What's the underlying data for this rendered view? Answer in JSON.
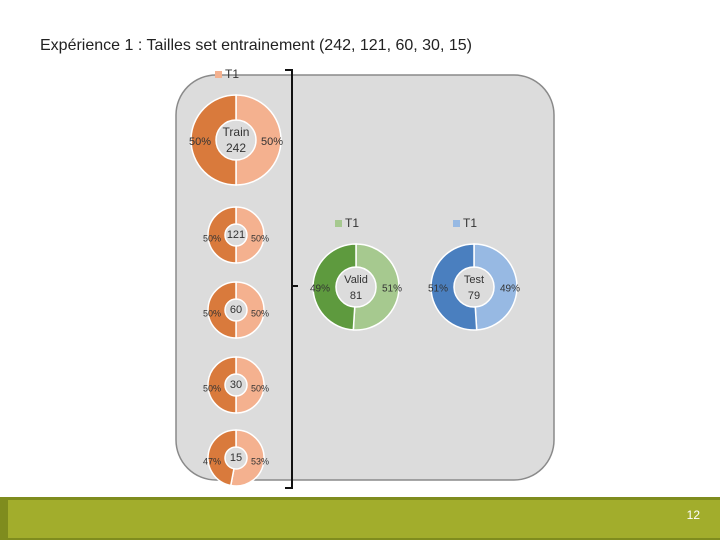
{
  "title": "Expérience 1 : Tailles set entrainement (242, 121, 60, 30, 15)",
  "page_number": 12,
  "chart_data": [
    {
      "type": "pie",
      "name": "T1",
      "center_title": "Train",
      "center_value": 242,
      "values": [
        50,
        50
      ],
      "value_labels": [
        "50%",
        "50%"
      ],
      "colors": [
        "#f4b18f",
        "#d97a3c"
      ]
    },
    {
      "type": "pie",
      "center_value": 121,
      "values": [
        50,
        50
      ],
      "value_labels": [
        "50%",
        "50%"
      ],
      "colors": [
        "#f4b18f",
        "#d97a3c"
      ]
    },
    {
      "type": "pie",
      "center_value": 60,
      "values": [
        50,
        50
      ],
      "value_labels": [
        "50%",
        "50%"
      ],
      "colors": [
        "#f4b18f",
        "#d97a3c"
      ]
    },
    {
      "type": "pie",
      "center_value": 30,
      "values": [
        50,
        50
      ],
      "value_labels": [
        "50%",
        "50%"
      ],
      "colors": [
        "#f4b18f",
        "#d97a3c"
      ]
    },
    {
      "type": "pie",
      "center_value": 15,
      "values": [
        53,
        47
      ],
      "value_labels": [
        "53%",
        "47%"
      ],
      "colors": [
        "#f4b18f",
        "#d97a3c"
      ]
    },
    {
      "type": "pie",
      "name": "T1",
      "center_title": "Valid",
      "center_value": 81,
      "values": [
        51,
        49
      ],
      "value_labels": [
        "51%",
        "49%"
      ],
      "colors": [
        "#a6c98f",
        "#5e9a3e"
      ]
    },
    {
      "type": "pie",
      "name": "T1",
      "center_title": "Test",
      "center_value": 79,
      "values": [
        49,
        51
      ],
      "value_labels": [
        "49%",
        "51%"
      ],
      "colors": [
        "#97b9e3",
        "#4a7fbf"
      ]
    }
  ]
}
